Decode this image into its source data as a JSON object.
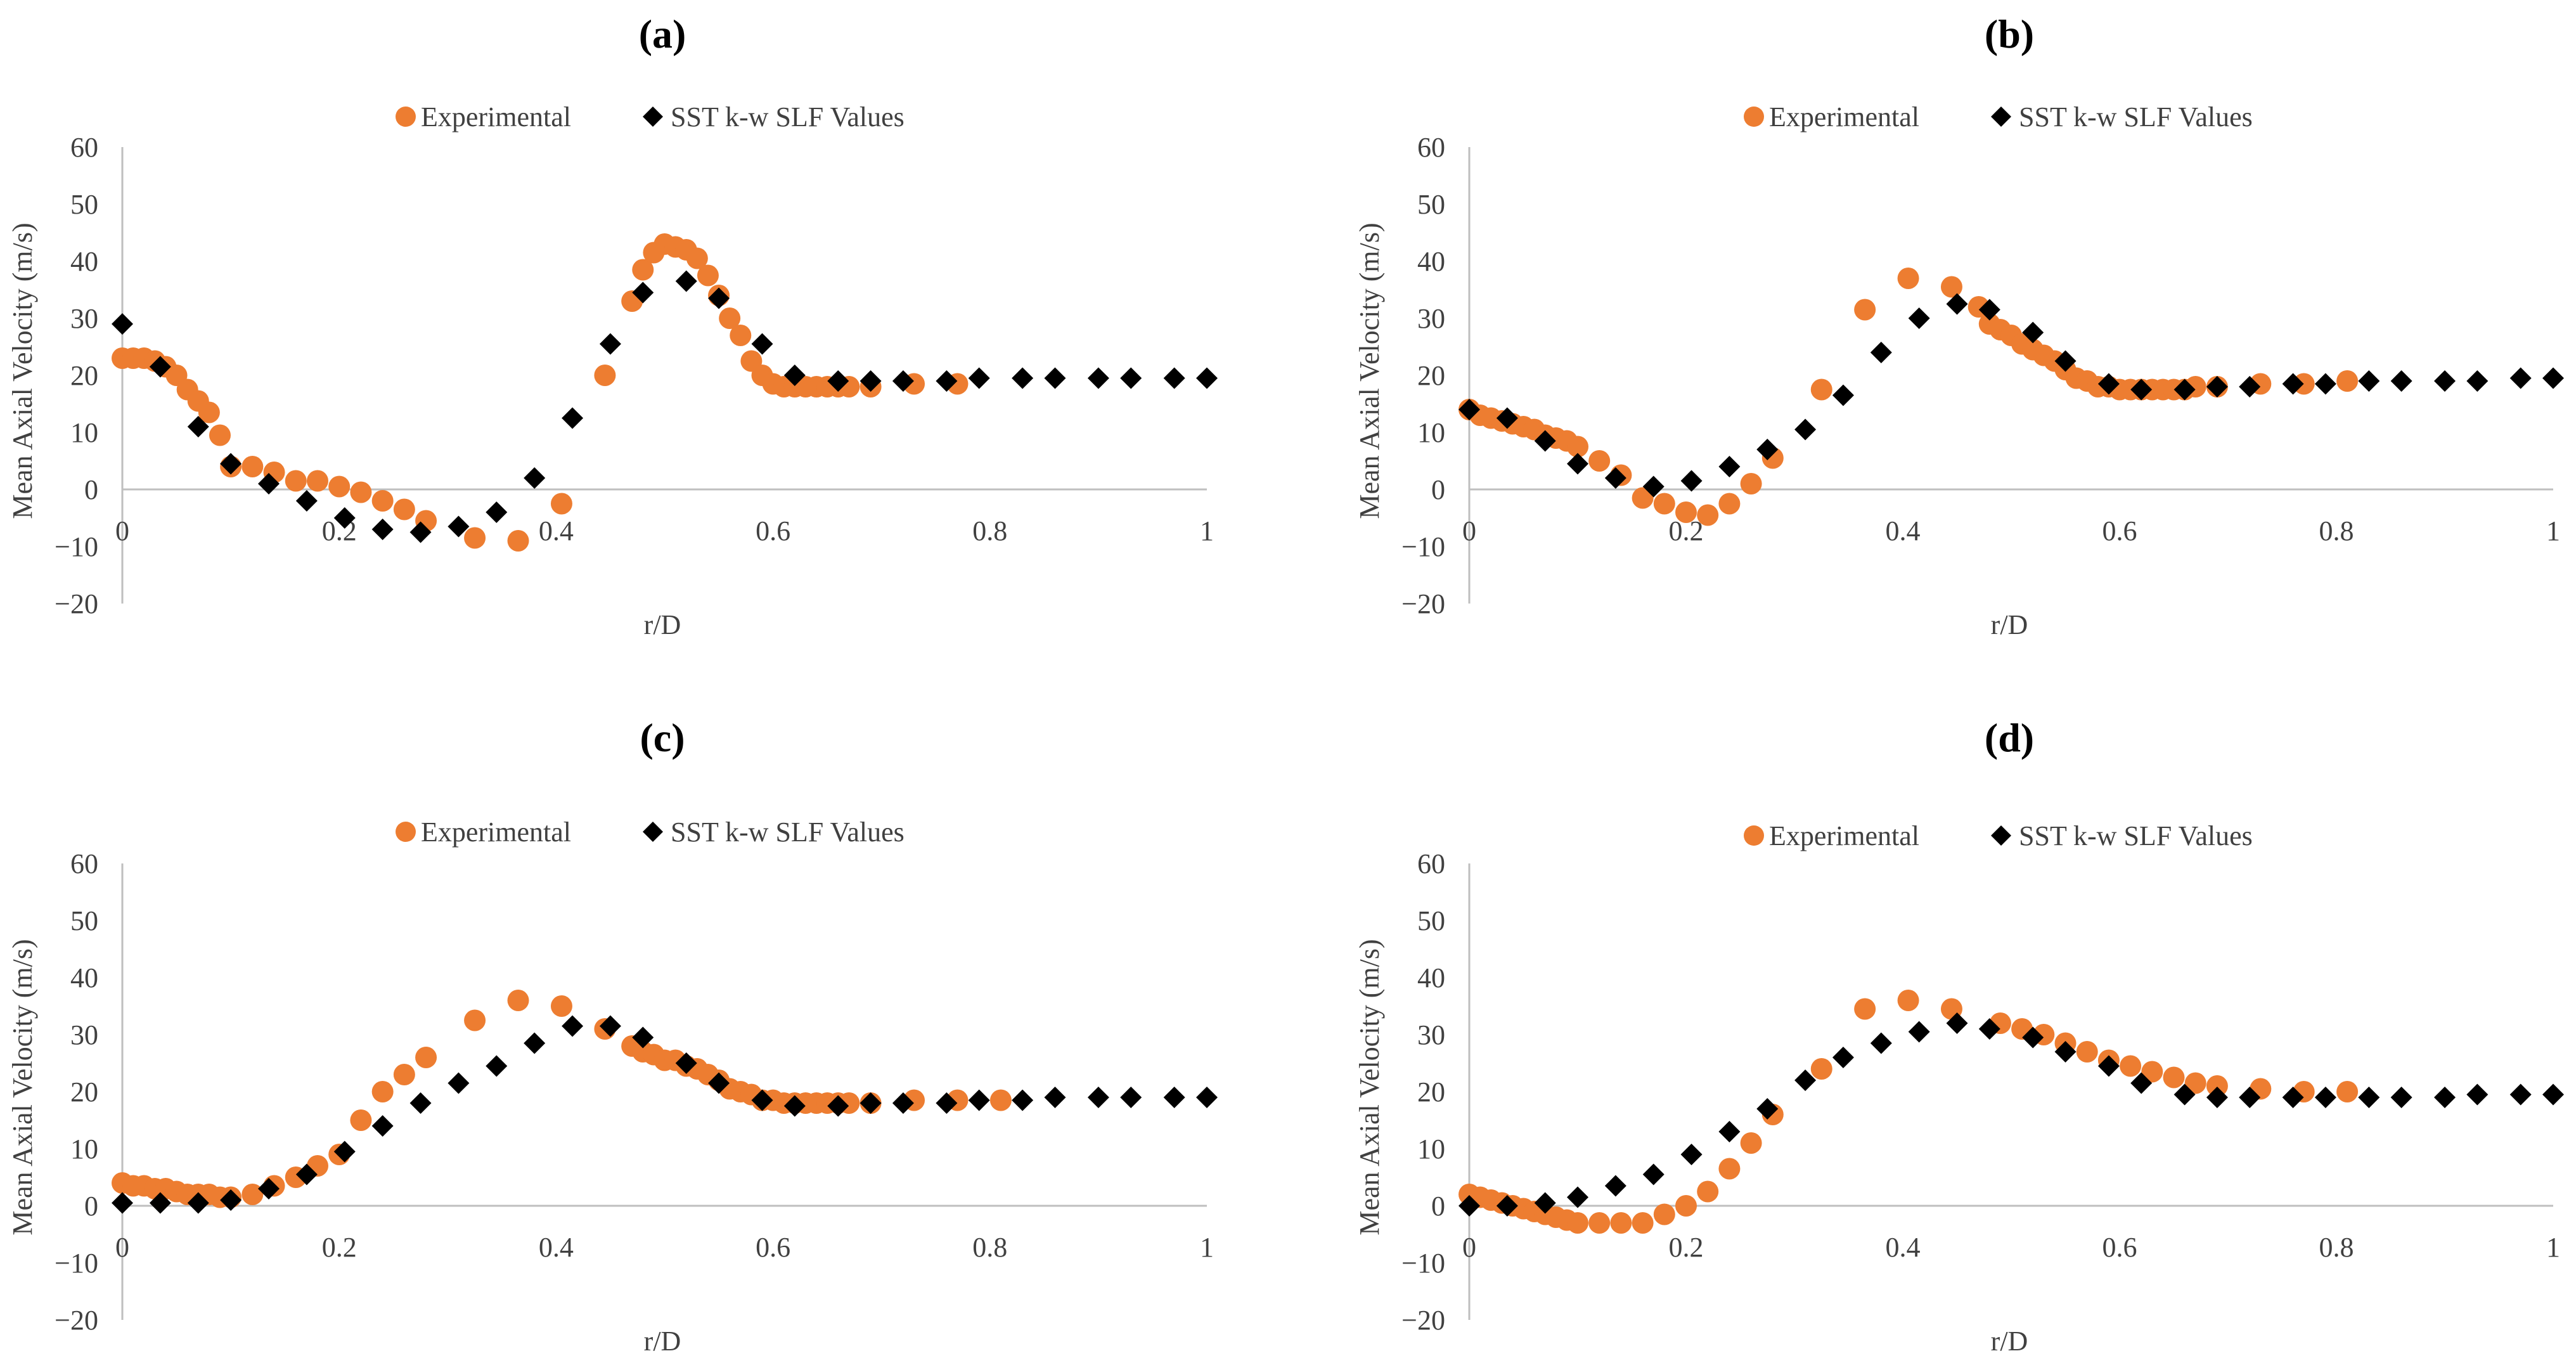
{
  "colors": {
    "experimental": "#ED7D31",
    "sst": "#000000",
    "axis": "#BFBFBF",
    "text": "#404040"
  },
  "chart_data": [
    {
      "type": "scatter",
      "title": "(a)",
      "xlabel": "r/D",
      "ylabel": "Mean Axial Velocity (m/s)",
      "xlim": [
        0,
        1
      ],
      "ylim": [
        -20,
        60
      ],
      "xticks": [
        "0",
        "0.2",
        "0.4",
        "0.6",
        "0.8",
        "1"
      ],
      "yticks": [
        "−20",
        "−10",
        "0",
        "10",
        "20",
        "30",
        "40",
        "50",
        "60"
      ],
      "legend": [
        "Experimental",
        "SST k-w SLF Values"
      ],
      "series": [
        {
          "name": "Experimental",
          "marker": "circle",
          "x": [
            0,
            0.01,
            0.02,
            0.03,
            0.04,
            0.05,
            0.06,
            0.07,
            0.08,
            0.09,
            0.1,
            0.12,
            0.14,
            0.16,
            0.18,
            0.2,
            0.22,
            0.24,
            0.26,
            0.28,
            0.325,
            0.365,
            0.405,
            0.445,
            0.47,
            0.48,
            0.49,
            0.5,
            0.51,
            0.52,
            0.53,
            0.54,
            0.55,
            0.56,
            0.57,
            0.58,
            0.59,
            0.6,
            0.61,
            0.62,
            0.63,
            0.64,
            0.65,
            0.66,
            0.67,
            0.69,
            0.73,
            0.77
          ],
          "y": [
            23,
            23,
            23,
            22.5,
            21.5,
            20,
            17.5,
            15.5,
            13.5,
            9.5,
            4,
            4,
            3,
            1.5,
            1.5,
            0.5,
            -0.5,
            -2,
            -3.5,
            -5.5,
            -8.5,
            -9,
            -2.5,
            20,
            33,
            38.5,
            41.5,
            43,
            42.5,
            42,
            40.5,
            37.5,
            34,
            30,
            27,
            22.5,
            20,
            18.5,
            18,
            18,
            18,
            18,
            18,
            18,
            18,
            18,
            18.5,
            18.5
          ]
        },
        {
          "name": "SST k-w SLF Values",
          "marker": "diamond",
          "x": [
            0,
            0.035,
            0.07,
            0.1,
            0.135,
            0.17,
            0.205,
            0.24,
            0.275,
            0.31,
            0.345,
            0.38,
            0.415,
            0.45,
            0.48,
            0.52,
            0.55,
            0.59,
            0.62,
            0.66,
            0.69,
            0.72,
            0.76,
            0.79,
            0.83,
            0.86,
            0.9,
            0.93,
            0.97,
            1.0
          ],
          "y": [
            29,
            21.5,
            11,
            4.5,
            1,
            -2,
            -5,
            -7,
            -7.5,
            -6.5,
            -4,
            2,
            12.5,
            25.5,
            34.5,
            36.5,
            33.5,
            25.5,
            20,
            19,
            19,
            19,
            19,
            19.5,
            19.5,
            19.5,
            19.5,
            19.5,
            19.5,
            19.5
          ]
        }
      ]
    },
    {
      "type": "scatter",
      "title": "(b)",
      "xlabel": "r/D",
      "ylabel": "Mean Axial Velocity (m/s)",
      "xlim": [
        0,
        1
      ],
      "ylim": [
        -20,
        60
      ],
      "xticks": [
        "0",
        "0.2",
        "0.4",
        "0.6",
        "0.8",
        "1"
      ],
      "yticks": [
        "−20",
        "−10",
        "0",
        "10",
        "20",
        "30",
        "40",
        "50",
        "60"
      ],
      "legend": [
        "Experimental",
        "SST k-w SLF Values"
      ],
      "series": [
        {
          "name": "Experimental",
          "marker": "circle",
          "x": [
            0,
            0.01,
            0.02,
            0.03,
            0.04,
            0.05,
            0.06,
            0.07,
            0.08,
            0.09,
            0.1,
            0.12,
            0.14,
            0.16,
            0.18,
            0.2,
            0.22,
            0.24,
            0.26,
            0.28,
            0.325,
            0.365,
            0.405,
            0.445,
            0.47,
            0.48,
            0.49,
            0.5,
            0.51,
            0.52,
            0.53,
            0.54,
            0.55,
            0.56,
            0.57,
            0.58,
            0.59,
            0.6,
            0.61,
            0.62,
            0.63,
            0.64,
            0.65,
            0.66,
            0.67,
            0.69,
            0.73,
            0.77,
            0.81
          ],
          "y": [
            14,
            13,
            12.5,
            12,
            11.5,
            11,
            10.5,
            9.5,
            9,
            8.5,
            7.5,
            5,
            2.5,
            -1.5,
            -2.5,
            -4,
            -4.5,
            -2.5,
            1,
            5.5,
            17.5,
            31.5,
            37,
            35.5,
            32,
            29,
            28,
            27,
            25.5,
            24.5,
            23.5,
            22.5,
            21,
            19.5,
            19,
            18,
            18,
            17.5,
            17.5,
            17.5,
            17.5,
            17.5,
            17.5,
            17.5,
            18,
            18,
            18.5,
            18.5,
            19
          ]
        },
        {
          "name": "SST k-w SLF Values",
          "marker": "diamond",
          "x": [
            0,
            0.035,
            0.07,
            0.1,
            0.135,
            0.17,
            0.205,
            0.24,
            0.275,
            0.31,
            0.345,
            0.38,
            0.415,
            0.45,
            0.48,
            0.52,
            0.55,
            0.59,
            0.62,
            0.66,
            0.69,
            0.72,
            0.76,
            0.79,
            0.83,
            0.86,
            0.9,
            0.93,
            0.97,
            1.0
          ],
          "y": [
            14,
            12.5,
            8.5,
            4.5,
            2,
            0.5,
            1.5,
            4,
            7,
            10.5,
            16.5,
            24,
            30,
            32.5,
            31.5,
            27.5,
            22.5,
            18.5,
            17.5,
            17.5,
            18,
            18,
            18.5,
            18.5,
            19,
            19,
            19,
            19,
            19.5,
            19.5
          ]
        }
      ]
    },
    {
      "type": "scatter",
      "title": "(c)",
      "xlabel": "r/D",
      "ylabel": "Mean Axial Velocity (m/s)",
      "xlim": [
        0,
        1
      ],
      "ylim": [
        -20,
        60
      ],
      "xticks": [
        "0",
        "0.2",
        "0.4",
        "0.6",
        "0.8",
        "1"
      ],
      "yticks": [
        "−20",
        "−10",
        "0",
        "10",
        "20",
        "30",
        "40",
        "50",
        "60"
      ],
      "legend": [
        "Experimental",
        "SST k-w SLF Values"
      ],
      "series": [
        {
          "name": "Experimental",
          "marker": "circle",
          "x": [
            0,
            0.01,
            0.02,
            0.03,
            0.04,
            0.05,
            0.06,
            0.07,
            0.08,
            0.09,
            0.1,
            0.12,
            0.14,
            0.16,
            0.18,
            0.2,
            0.22,
            0.24,
            0.26,
            0.28,
            0.325,
            0.365,
            0.405,
            0.445,
            0.47,
            0.48,
            0.49,
            0.5,
            0.51,
            0.52,
            0.53,
            0.54,
            0.55,
            0.56,
            0.57,
            0.58,
            0.59,
            0.6,
            0.61,
            0.62,
            0.63,
            0.64,
            0.65,
            0.66,
            0.67,
            0.69,
            0.73,
            0.77,
            0.81
          ],
          "y": [
            4,
            3.5,
            3.5,
            3,
            3,
            2.5,
            2,
            2,
            2,
            1.5,
            1.5,
            2,
            3.5,
            5,
            7,
            9,
            15,
            20,
            23,
            26,
            32.5,
            36,
            35,
            31,
            28,
            27,
            26.5,
            25.5,
            25.5,
            24.5,
            24,
            23,
            22,
            20.5,
            20,
            19.5,
            18.5,
            18.5,
            18,
            18,
            18,
            18,
            18,
            18,
            18,
            18,
            18.5,
            18.5,
            18.5
          ]
        },
        {
          "name": "SST k-w SLF Values",
          "marker": "diamond",
          "x": [
            0,
            0.035,
            0.07,
            0.1,
            0.135,
            0.17,
            0.205,
            0.24,
            0.275,
            0.31,
            0.345,
            0.38,
            0.415,
            0.45,
            0.48,
            0.52,
            0.55,
            0.59,
            0.62,
            0.66,
            0.69,
            0.72,
            0.76,
            0.79,
            0.83,
            0.86,
            0.9,
            0.93,
            0.97,
            1.0
          ],
          "y": [
            0.5,
            0.5,
            0.5,
            1,
            3,
            5.5,
            9.5,
            14,
            18,
            21.5,
            24.5,
            28.5,
            31.5,
            31.5,
            29.5,
            25,
            21.5,
            18.5,
            17.5,
            17.5,
            18,
            18,
            18,
            18.5,
            18.5,
            19,
            19,
            19,
            19,
            19
          ]
        }
      ]
    },
    {
      "type": "scatter",
      "title": "(d)",
      "xlabel": "r/D",
      "ylabel": "Mean Axial Velocity (m/s)",
      "xlim": [
        0,
        1
      ],
      "ylim": [
        -20,
        60
      ],
      "xticks": [
        "0",
        "0.2",
        "0.4",
        "0.6",
        "0.8",
        "1"
      ],
      "yticks": [
        "−20",
        "−10",
        "0",
        "10",
        "20",
        "30",
        "40",
        "50",
        "60"
      ],
      "legend": [
        "Experimental",
        "SST k-w SLF Values"
      ],
      "series": [
        {
          "name": "Experimental",
          "marker": "circle",
          "x": [
            0,
            0.01,
            0.02,
            0.03,
            0.04,
            0.05,
            0.06,
            0.07,
            0.08,
            0.09,
            0.1,
            0.12,
            0.14,
            0.16,
            0.18,
            0.2,
            0.22,
            0.24,
            0.26,
            0.28,
            0.325,
            0.365,
            0.405,
            0.445,
            0.49,
            0.51,
            0.53,
            0.55,
            0.57,
            0.59,
            0.61,
            0.63,
            0.65,
            0.67,
            0.69,
            0.73,
            0.77,
            0.81
          ],
          "y": [
            2,
            1.5,
            1,
            0.5,
            0,
            -0.5,
            -1,
            -1.5,
            -2,
            -2.5,
            -3,
            -3,
            -3,
            -3,
            -1.5,
            0,
            2.5,
            6.5,
            11,
            16,
            24,
            34.5,
            36,
            34.5,
            32,
            31,
            30,
            28.5,
            27,
            25.5,
            24.5,
            23.5,
            22.5,
            21.5,
            21,
            20.5,
            20,
            20
          ]
        },
        {
          "name": "SST k-w SLF Values",
          "marker": "diamond",
          "x": [
            0,
            0.035,
            0.07,
            0.1,
            0.135,
            0.17,
            0.205,
            0.24,
            0.275,
            0.31,
            0.345,
            0.38,
            0.415,
            0.45,
            0.48,
            0.52,
            0.55,
            0.59,
            0.62,
            0.66,
            0.69,
            0.72,
            0.76,
            0.79,
            0.83,
            0.86,
            0.9,
            0.93,
            0.97,
            1.0
          ],
          "y": [
            0,
            0,
            0.5,
            1.5,
            3.5,
            5.5,
            9,
            13,
            17,
            22,
            26,
            28.5,
            30.5,
            32,
            31,
            29.5,
            27,
            24.5,
            21.5,
            19.5,
            19,
            19,
            19,
            19,
            19,
            19,
            19,
            19.5,
            19.5,
            19.5
          ]
        }
      ]
    }
  ]
}
